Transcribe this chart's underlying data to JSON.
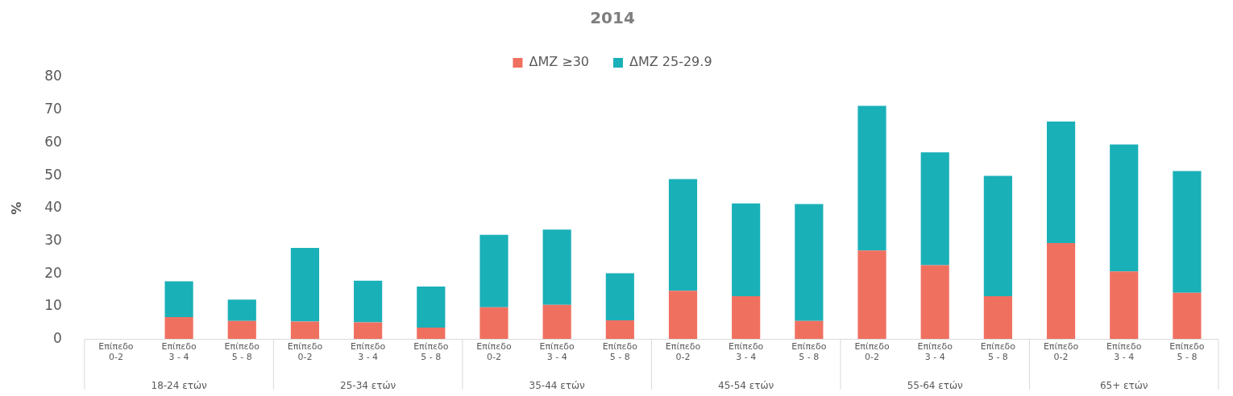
{
  "chart_data": {
    "type": "bar",
    "title": "2014",
    "ylabel": "%",
    "stacked": true,
    "legend": "top",
    "grid": false,
    "categories": [
      "Επίπεδο 0-2",
      "Επίπεδο 3 - 4",
      "Επίπεδο 5 - 8",
      "Επίπεδο 0-2",
      "Επίπεδο 3 - 4",
      "Επίπεδο 5 - 8",
      "Επίπεδο 0-2",
      "Επίπεδο 3 - 4",
      "Επίπεδο 5 - 8",
      "Επίπεδο 0-2",
      "Επίπεδο 3 - 4",
      "Επίπεδο 5 - 8",
      "Επίπεδο 0-2",
      "Επίπεδο 3 - 4",
      "Επίπεδο 5 - 8",
      "Επίπεδο 0-2",
      "Επίπεδο 3 - 4",
      "Επίπεδο 5 - 8"
    ],
    "annotations": [
      "18-24 ετών",
      "25-34 ετών",
      "35-44 ετών",
      "45-54 ετών",
      "55-64 ετών",
      "65+ ετών"
    ],
    "ylim": [
      0,
      80
    ],
    "yticks": [
      0,
      10,
      20,
      30,
      40,
      50,
      60,
      70,
      80
    ],
    "series": [
      {
        "name": "ΔΜΖ ≥30",
        "color": "#f07060",
        "values": [
          null,
          6.8,
          5.6,
          5.4,
          5.2,
          3.6,
          9.8,
          10.5,
          5.8,
          14.8,
          13.2,
          5.6,
          27.1,
          22.6,
          13.2,
          29.4,
          20.7,
          14.2
        ]
      },
      {
        "name": "ΔΜΖ 25-29.9",
        "color": "#1ab0b8",
        "values": [
          null,
          10.9,
          6.5,
          22.5,
          12.7,
          12.5,
          22.1,
          23.0,
          14.4,
          34.1,
          28.3,
          35.7,
          44.2,
          34.5,
          36.7,
          37.1,
          38.8,
          37.2
        ]
      }
    ]
  }
}
